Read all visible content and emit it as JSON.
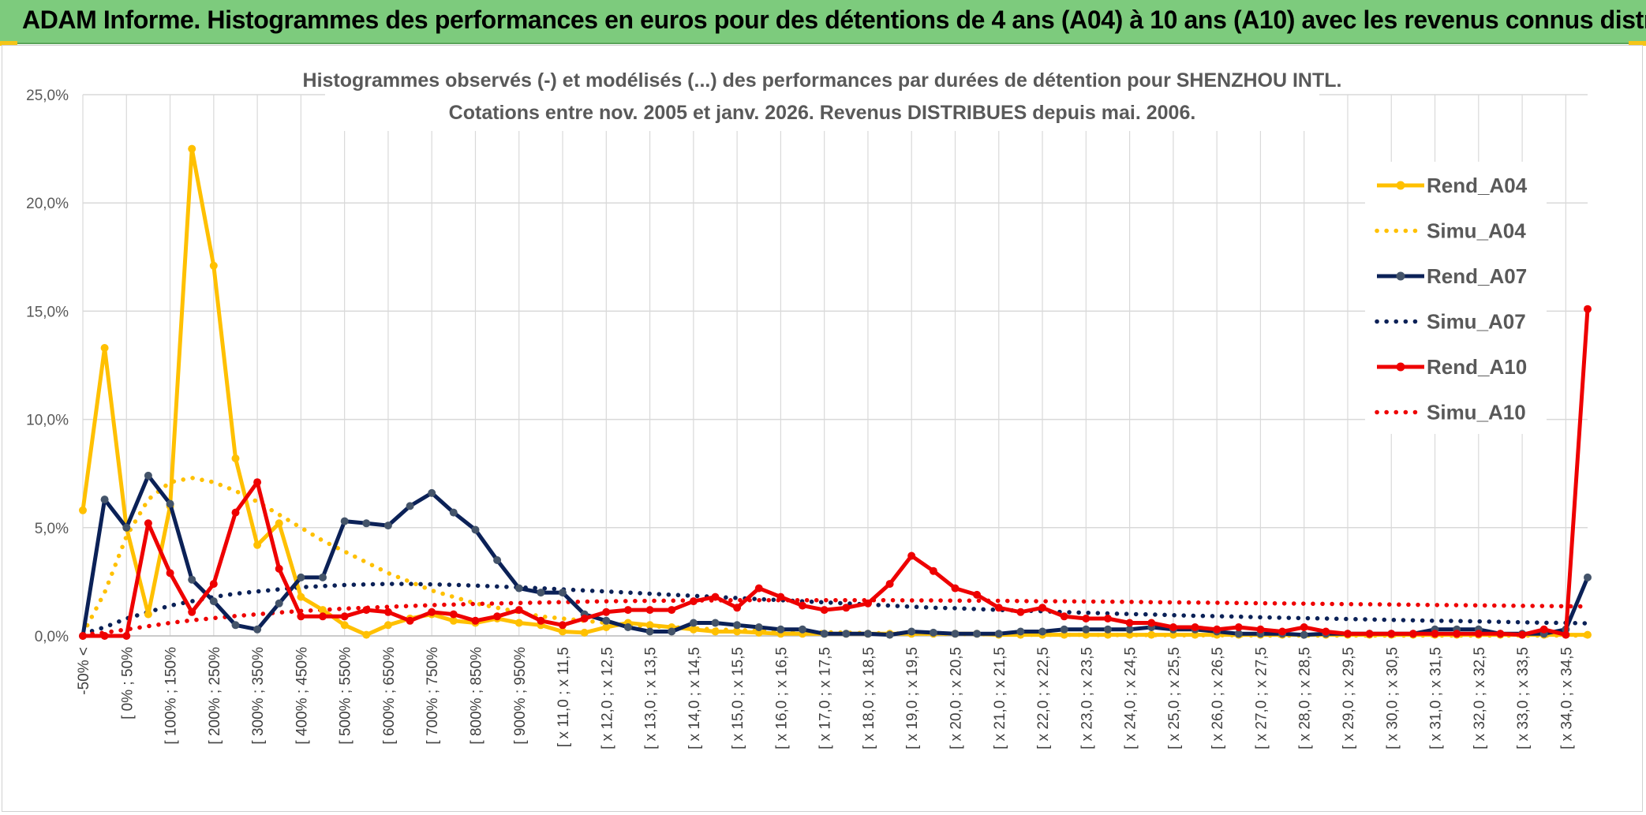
{
  "banner": {
    "title": "ADAM Informe. Histogrammes des performances en euros pour des détentions de 4 ans (A04) à 10 ans (A10) avec les revenus connus distribués"
  },
  "colors": {
    "banner_bg": "#7dcb7d",
    "A04": "#ffc000",
    "A07": "#0b2157",
    "A10": "#ee0000",
    "grid": "#d9d9d9"
  },
  "chart_data": {
    "type": "line",
    "title": "Histogrammes observés (-) et modélisés (...) des performances par durées de détention pour SHENZHOU INTL.",
    "subtitle": "Cotations entre nov. 2005 et janv. 2026. Revenus DISTRIBUES depuis mai. 2006.",
    "xlabel": "",
    "ylabel": "",
    "ylim": [
      0,
      25
    ],
    "y_ticks": [
      "0,0%",
      "5,0%",
      "10,0%",
      "15,0%",
      "20,0%",
      "25,0%"
    ],
    "grid": true,
    "legend_position": "right",
    "x_tick_labels": [
      "-50% <",
      "[ 0% ; 50%",
      "[ 100% ; 150%",
      "[ 200% ; 250%",
      "[ 300% ; 350%",
      "[ 400% ; 450%",
      "[ 500% ; 550%",
      "[ 600% ; 650%",
      "[ 700% ; 750%",
      "[ 800% ; 850%",
      "[ 900% ; 950%",
      "[ x 11,0 ; x 11,5",
      "[ x 12,0 ; x 12,5",
      "[ x 13,0 ; x 13,5",
      "[ x 14,0 ; x 14,5",
      "[ x 15,0 ; x 15,5",
      "[ x 16,0 ; x 16,5",
      "[ x 17,0 ; x 17,5",
      "[ x 18,0 ; x 18,5",
      "[ x 19,0 ; x 19,5",
      "[ x 20,0 ; x 20,5",
      "[ x 21,0 ; x 21,5",
      "[ x 22,0 ; x 22,5",
      "[ x 23,0 ; x 23,5",
      "[ x 24,0 ; x 24,5",
      "[ x 25,0 ; x 25,5",
      "[ x 26,0 ; x 26,5",
      "[ x 27,0 ; x 27,5",
      "[ x 28,0 ; x 28,5",
      "[ x 29,0 ; x 29,5",
      "[ x 30,0 ; x 30,5",
      "[ x 31,0 ; x 31,5",
      "[ x 32,0 ; x 32,5",
      "[ x 33,0 ; x 33,5",
      "[ x 34,0 ; x 34,5"
    ],
    "x_tick_every": 2,
    "n_bins": 70,
    "series": [
      {
        "name": "Rend_A04",
        "style": "solid",
        "color": "#ffc000",
        "values": [
          5.8,
          13.3,
          5.0,
          1.0,
          6.0,
          22.5,
          17.1,
          8.2,
          4.2,
          5.2,
          1.8,
          1.2,
          0.5,
          0.05,
          0.5,
          0.8,
          1.0,
          0.7,
          0.6,
          0.8,
          0.6,
          0.5,
          0.2,
          0.15,
          0.4,
          0.6,
          0.5,
          0.4,
          0.3,
          0.2,
          0.2,
          0.15,
          0.1,
          0.1,
          0.1,
          0.1,
          0.1,
          0.1,
          0.1,
          0.1,
          0.1,
          0.1,
          0.05,
          0.05,
          0.05,
          0.05,
          0.05,
          0.05,
          0.05,
          0.05,
          0.05,
          0.05,
          0.05,
          0.05,
          0.05,
          0.05,
          0.05,
          0.05,
          0.05,
          0.05,
          0.05,
          0.05,
          0.05,
          0.05,
          0.05,
          0.05,
          0.05,
          0.05,
          0.05,
          0.05
        ]
      },
      {
        "name": "Simu_A04",
        "style": "dotted",
        "color": "#ffc000",
        "values": [
          0.1,
          2.0,
          4.6,
          6.3,
          7.1,
          7.3,
          7.1,
          6.7,
          6.2,
          5.6,
          5.0,
          4.4,
          3.9,
          3.4,
          2.9,
          2.5,
          2.1,
          1.8,
          1.5,
          1.3,
          1.1,
          0.9,
          0.8,
          0.7,
          0.6,
          0.5,
          0.45,
          0.4,
          0.35,
          0.3,
          0.27,
          0.24,
          0.21,
          0.19,
          0.17,
          0.15,
          0.13,
          0.12,
          0.1,
          0.1,
          0.09,
          0.08,
          0.07,
          0.06,
          0.05,
          0.05,
          0.05,
          0.04,
          0.04,
          0.04,
          0.03,
          0.03,
          0.03,
          0.03,
          0.02,
          0.02,
          0.02,
          0.02,
          0.02,
          0.02,
          0.02,
          0.02,
          0.02,
          0.02,
          0.02,
          0.02,
          0.02,
          0.02,
          0.02,
          0.02
        ]
      },
      {
        "name": "Rend_A07",
        "style": "solid",
        "color": "#0b2157",
        "values": [
          0.0,
          6.3,
          5.0,
          7.4,
          6.1,
          2.6,
          1.6,
          0.5,
          0.3,
          1.5,
          2.7,
          2.7,
          5.3,
          5.2,
          5.1,
          6.0,
          6.6,
          5.7,
          4.9,
          3.5,
          2.2,
          2.0,
          2.0,
          1.0,
          0.7,
          0.4,
          0.2,
          0.2,
          0.6,
          0.6,
          0.5,
          0.4,
          0.3,
          0.3,
          0.1,
          0.1,
          0.1,
          0.05,
          0.2,
          0.15,
          0.1,
          0.1,
          0.1,
          0.2,
          0.2,
          0.3,
          0.3,
          0.3,
          0.3,
          0.4,
          0.3,
          0.3,
          0.2,
          0.1,
          0.1,
          0.1,
          0.05,
          0.1,
          0.1,
          0.1,
          0.1,
          0.1,
          0.3,
          0.3,
          0.3,
          0.1,
          0.1,
          0.1,
          0.3,
          2.7
        ]
      },
      {
        "name": "Simu_A07",
        "style": "dotted",
        "color": "#0b2157",
        "values": [
          0.1,
          0.4,
          0.8,
          1.1,
          1.4,
          1.6,
          1.8,
          1.95,
          2.05,
          2.15,
          2.25,
          2.3,
          2.35,
          2.38,
          2.4,
          2.4,
          2.38,
          2.36,
          2.32,
          2.28,
          2.24,
          2.2,
          2.15,
          2.1,
          2.05,
          2.0,
          1.95,
          1.9,
          1.85,
          1.8,
          1.75,
          1.7,
          1.65,
          1.6,
          1.55,
          1.5,
          1.45,
          1.4,
          1.35,
          1.3,
          1.28,
          1.24,
          1.2,
          1.17,
          1.14,
          1.1,
          1.07,
          1.04,
          1.01,
          0.99,
          0.96,
          0.93,
          0.91,
          0.89,
          0.86,
          0.84,
          0.82,
          0.8,
          0.78,
          0.76,
          0.74,
          0.72,
          0.7,
          0.69,
          0.67,
          0.65,
          0.63,
          0.61,
          0.6,
          0.58
        ]
      },
      {
        "name": "Rend_A10",
        "style": "solid",
        "color": "#ee0000",
        "values": [
          0.0,
          0.0,
          0.0,
          5.2,
          2.9,
          1.1,
          2.4,
          5.7,
          7.1,
          3.1,
          0.9,
          0.9,
          0.9,
          1.2,
          1.1,
          0.7,
          1.1,
          1.0,
          0.7,
          0.9,
          1.2,
          0.7,
          0.5,
          0.8,
          1.1,
          1.2,
          1.2,
          1.2,
          1.6,
          1.8,
          1.3,
          2.2,
          1.8,
          1.4,
          1.2,
          1.3,
          1.5,
          2.4,
          3.7,
          3.0,
          2.2,
          1.9,
          1.3,
          1.1,
          1.3,
          0.9,
          0.8,
          0.8,
          0.6,
          0.6,
          0.4,
          0.4,
          0.3,
          0.4,
          0.3,
          0.2,
          0.4,
          0.2,
          0.1,
          0.1,
          0.1,
          0.1,
          0.1,
          0.1,
          0.1,
          0.1,
          0.05,
          0.3,
          0.05,
          15.1
        ]
      },
      {
        "name": "Simu_A10",
        "style": "dotted",
        "color": "#ee0000",
        "values": [
          0.05,
          0.15,
          0.3,
          0.45,
          0.6,
          0.72,
          0.82,
          0.92,
          1.0,
          1.08,
          1.15,
          1.2,
          1.26,
          1.3,
          1.34,
          1.38,
          1.42,
          1.45,
          1.48,
          1.5,
          1.52,
          1.54,
          1.56,
          1.58,
          1.6,
          1.61,
          1.62,
          1.63,
          1.64,
          1.64,
          1.65,
          1.65,
          1.65,
          1.65,
          1.65,
          1.65,
          1.65,
          1.65,
          1.64,
          1.64,
          1.63,
          1.63,
          1.62,
          1.61,
          1.6,
          1.6,
          1.59,
          1.58,
          1.57,
          1.56,
          1.55,
          1.54,
          1.53,
          1.52,
          1.51,
          1.5,
          1.49,
          1.48,
          1.47,
          1.46,
          1.45,
          1.44,
          1.43,
          1.42,
          1.41,
          1.4,
          1.39,
          1.38,
          1.37,
          1.36
        ]
      }
    ]
  }
}
